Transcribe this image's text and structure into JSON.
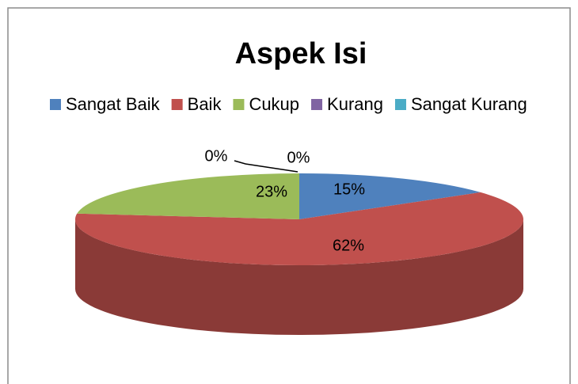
{
  "chart_data": {
    "type": "pie3d",
    "title": "Aspek Isi",
    "categories": [
      "Sangat Baik",
      "Baik",
      "Cukup",
      "Kurang",
      "Sangat Kurang"
    ],
    "values": [
      15,
      62,
      23,
      0,
      0
    ],
    "value_labels": [
      "15%",
      "62%",
      "23%",
      "0%",
      "0%"
    ],
    "colors": [
      "#4f81bd",
      "#c0504d",
      "#9bbb59",
      "#8064a2",
      "#4bacc6"
    ],
    "legend": "top"
  }
}
